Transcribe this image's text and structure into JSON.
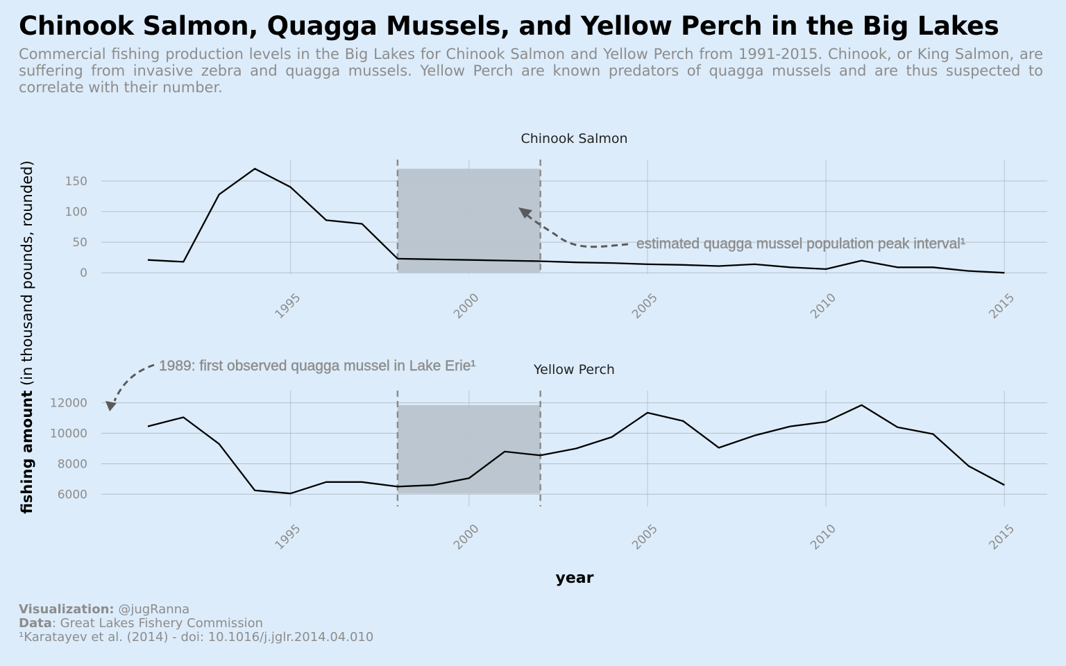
{
  "title": "Chinook Salmon, Quagga Mussels, and Yellow Perch in the Big Lakes",
  "subtitle": "Commercial fishing production levels in the Big Lakes for Chinook Salmon and Yellow Perch from 1991-2015. Chinook, or King Salmon, are suffering from invasive zebra and quagga mussels. Yellow Perch are known predators of quagga mussels and are thus suspected to correlate with their number.",
  "caption": {
    "visualization_label": "Visualization:",
    "visualization_value": "@jugRanna",
    "data_label": "Data",
    "data_value": ": Great Lakes Fishery Commission",
    "reference": "¹Karatayev et al. (2014) - doi: 10.1016/j.jglr.2014.04.010"
  },
  "colors": {
    "background": "#ddecfa",
    "line": "#000000",
    "highlight_rect": "#b8c4ce",
    "dashed": "#8c8c8c",
    "arrow": "#5a5a5a",
    "annotation_text": "#8c8c8c",
    "grid": "#aab4bf"
  },
  "chart_data": {
    "type": "line",
    "xlabel": "year",
    "ylabel_bold": "fishing amount",
    "ylabel_rest": " (in thousand pounds, rounded)",
    "xlim": [
      1989.7,
      2016.2
    ],
    "x_ticks": [
      1995,
      2000,
      2005,
      2010,
      2015
    ],
    "highlight_interval": [
      1998,
      2002
    ],
    "annotations": [
      {
        "text": "estimated quagga mussel population peak interval¹",
        "panel": "Chinook Salmon"
      },
      {
        "text": "1989: first observed quagga mussel in Lake Erie¹",
        "panel": "Yellow Perch"
      }
    ],
    "panels": [
      {
        "name": "Chinook Salmon",
        "ylim": [
          -2,
          185
        ],
        "y_ticks": [
          0,
          50,
          100,
          150
        ],
        "x": [
          1991,
          1992,
          1993,
          1994,
          1995,
          1996,
          1997,
          1998,
          1999,
          2000,
          2001,
          2002,
          2003,
          2004,
          2005,
          2006,
          2007,
          2008,
          2009,
          2010,
          2011,
          2012,
          2013,
          2014,
          2015
        ],
        "values": [
          21,
          18,
          128,
          170,
          140,
          86,
          80,
          23,
          22,
          21,
          20,
          19,
          17,
          16,
          14,
          13,
          11,
          14,
          9,
          6,
          20,
          9,
          9,
          3,
          0
        ]
      },
      {
        "name": "Yellow Perch",
        "ylim": [
          5200,
          12800
        ],
        "y_ticks": [
          6000,
          8000,
          10000,
          12000
        ],
        "x": [
          1991,
          1992,
          1993,
          1994,
          1995,
          1996,
          1997,
          1998,
          1999,
          2000,
          2001,
          2002,
          2003,
          2004,
          2005,
          2006,
          2007,
          2008,
          2009,
          2010,
          2011,
          2012,
          2013,
          2014,
          2015
        ],
        "values": [
          10450,
          11050,
          9300,
          6250,
          6050,
          6800,
          6800,
          6500,
          6600,
          7050,
          8800,
          8550,
          9000,
          9750,
          11350,
          10800,
          9050,
          9850,
          10450,
          10750,
          11850,
          10400,
          9950,
          7850,
          6600
        ]
      }
    ]
  }
}
